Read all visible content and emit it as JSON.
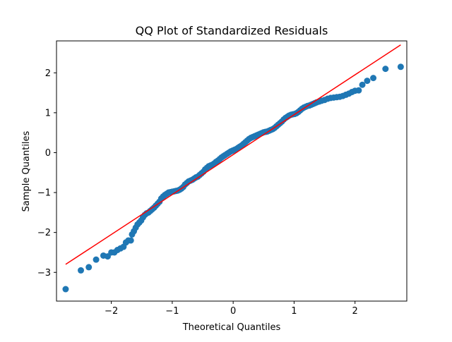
{
  "chart_data": {
    "type": "scatter",
    "title": "QQ Plot of Standardized Residuals",
    "xlabel": "Theoretical Quantiles",
    "ylabel": "Sample Quantiles",
    "xlim": [
      -2.9,
      2.85
    ],
    "ylim": [
      -3.72,
      2.8
    ],
    "x_ticks": [
      -2,
      -1,
      0,
      1,
      2
    ],
    "x_tick_labels": [
      "−2",
      "−1",
      "0",
      "1",
      "2"
    ],
    "y_ticks": [
      -3,
      -2,
      -1,
      0,
      1,
      2
    ],
    "y_tick_labels": [
      "−3",
      "−2",
      "−1",
      "0",
      "1",
      "2"
    ],
    "grid": false,
    "legend": "none",
    "colors": {
      "points": "#1f77b4",
      "reference_line": "#ff0000"
    },
    "reference_line": {
      "x": [
        -2.75,
        2.75
      ],
      "y": [
        -2.8,
        2.7
      ]
    },
    "series": [
      {
        "points": [
          [
            -2.75,
            -3.42
          ],
          [
            -2.5,
            -2.95
          ],
          [
            -2.37,
            -2.87
          ],
          [
            -2.25,
            -2.68
          ],
          [
            -2.13,
            -2.58
          ],
          [
            -2.06,
            -2.6
          ],
          [
            -2.0,
            -2.5
          ],
          [
            -1.95,
            -2.5
          ],
          [
            -1.9,
            -2.44
          ],
          [
            -1.85,
            -2.4
          ],
          [
            -1.8,
            -2.36
          ],
          [
            -1.76,
            -2.25
          ],
          [
            -1.72,
            -2.2
          ],
          [
            -1.68,
            -2.2
          ],
          [
            -1.66,
            -2.05
          ],
          [
            -1.63,
            -1.97
          ],
          [
            -1.6,
            -1.88
          ],
          [
            -1.57,
            -1.8
          ],
          [
            -1.54,
            -1.75
          ],
          [
            -1.51,
            -1.7
          ],
          [
            -1.48,
            -1.62
          ],
          [
            -1.45,
            -1.56
          ],
          [
            -1.42,
            -1.52
          ],
          [
            -1.39,
            -1.5
          ],
          [
            -1.36,
            -1.46
          ],
          [
            -1.33,
            -1.42
          ],
          [
            -1.3,
            -1.38
          ],
          [
            -1.27,
            -1.33
          ],
          [
            -1.24,
            -1.28
          ],
          [
            -1.21,
            -1.23
          ],
          [
            -1.18,
            -1.15
          ],
          [
            -1.15,
            -1.1
          ],
          [
            -1.12,
            -1.06
          ],
          [
            -1.09,
            -1.03
          ],
          [
            -1.06,
            -1.0
          ],
          [
            -1.03,
            -0.99
          ],
          [
            -1.0,
            -0.98
          ],
          [
            -0.97,
            -0.97
          ],
          [
            -0.94,
            -0.96
          ],
          [
            -0.91,
            -0.95
          ],
          [
            -0.88,
            -0.93
          ],
          [
            -0.85,
            -0.9
          ],
          [
            -0.82,
            -0.86
          ],
          [
            -0.79,
            -0.8
          ],
          [
            -0.76,
            -0.76
          ],
          [
            -0.73,
            -0.72
          ],
          [
            -0.7,
            -0.7
          ],
          [
            -0.67,
            -0.68
          ],
          [
            -0.64,
            -0.65
          ],
          [
            -0.61,
            -0.62
          ],
          [
            -0.58,
            -0.6
          ],
          [
            -0.55,
            -0.56
          ],
          [
            -0.52,
            -0.52
          ],
          [
            -0.49,
            -0.48
          ],
          [
            -0.46,
            -0.42
          ],
          [
            -0.43,
            -0.38
          ],
          [
            -0.4,
            -0.34
          ],
          [
            -0.37,
            -0.32
          ],
          [
            -0.34,
            -0.3
          ],
          [
            -0.31,
            -0.27
          ],
          [
            -0.28,
            -0.23
          ],
          [
            -0.25,
            -0.2
          ],
          [
            -0.22,
            -0.16
          ],
          [
            -0.19,
            -0.12
          ],
          [
            -0.16,
            -0.09
          ],
          [
            -0.13,
            -0.06
          ],
          [
            -0.1,
            -0.03
          ],
          [
            -0.07,
            0.0
          ],
          [
            -0.04,
            0.03
          ],
          [
            -0.01,
            0.05
          ],
          [
            0.02,
            0.07
          ],
          [
            0.05,
            0.09
          ],
          [
            0.08,
            0.12
          ],
          [
            0.11,
            0.15
          ],
          [
            0.14,
            0.18
          ],
          [
            0.17,
            0.22
          ],
          [
            0.2,
            0.26
          ],
          [
            0.23,
            0.3
          ],
          [
            0.26,
            0.34
          ],
          [
            0.29,
            0.37
          ],
          [
            0.32,
            0.39
          ],
          [
            0.35,
            0.41
          ],
          [
            0.38,
            0.43
          ],
          [
            0.41,
            0.45
          ],
          [
            0.44,
            0.47
          ],
          [
            0.47,
            0.49
          ],
          [
            0.5,
            0.51
          ],
          [
            0.53,
            0.52
          ],
          [
            0.56,
            0.53
          ],
          [
            0.59,
            0.55
          ],
          [
            0.62,
            0.57
          ],
          [
            0.65,
            0.59
          ],
          [
            0.68,
            0.62
          ],
          [
            0.71,
            0.66
          ],
          [
            0.74,
            0.7
          ],
          [
            0.77,
            0.74
          ],
          [
            0.8,
            0.78
          ],
          [
            0.83,
            0.83
          ],
          [
            0.86,
            0.87
          ],
          [
            0.89,
            0.9
          ],
          [
            0.92,
            0.93
          ],
          [
            0.95,
            0.95
          ],
          [
            0.98,
            0.96
          ],
          [
            1.01,
            0.97
          ],
          [
            1.04,
            0.99
          ],
          [
            1.07,
            1.02
          ],
          [
            1.1,
            1.06
          ],
          [
            1.13,
            1.1
          ],
          [
            1.16,
            1.13
          ],
          [
            1.19,
            1.15
          ],
          [
            1.22,
            1.17
          ],
          [
            1.25,
            1.18
          ],
          [
            1.28,
            1.2
          ],
          [
            1.31,
            1.22
          ],
          [
            1.34,
            1.24
          ],
          [
            1.37,
            1.26
          ],
          [
            1.41,
            1.28
          ],
          [
            1.45,
            1.3
          ],
          [
            1.5,
            1.32
          ],
          [
            1.55,
            1.35
          ],
          [
            1.6,
            1.37
          ],
          [
            1.65,
            1.38
          ],
          [
            1.7,
            1.39
          ],
          [
            1.75,
            1.4
          ],
          [
            1.8,
            1.42
          ],
          [
            1.85,
            1.45
          ],
          [
            1.9,
            1.48
          ],
          [
            1.95,
            1.52
          ],
          [
            2.0,
            1.55
          ],
          [
            2.06,
            1.56
          ],
          [
            2.12,
            1.7
          ],
          [
            2.2,
            1.8
          ],
          [
            2.3,
            1.87
          ],
          [
            2.5,
            2.1
          ],
          [
            2.75,
            2.15
          ]
        ]
      }
    ]
  }
}
